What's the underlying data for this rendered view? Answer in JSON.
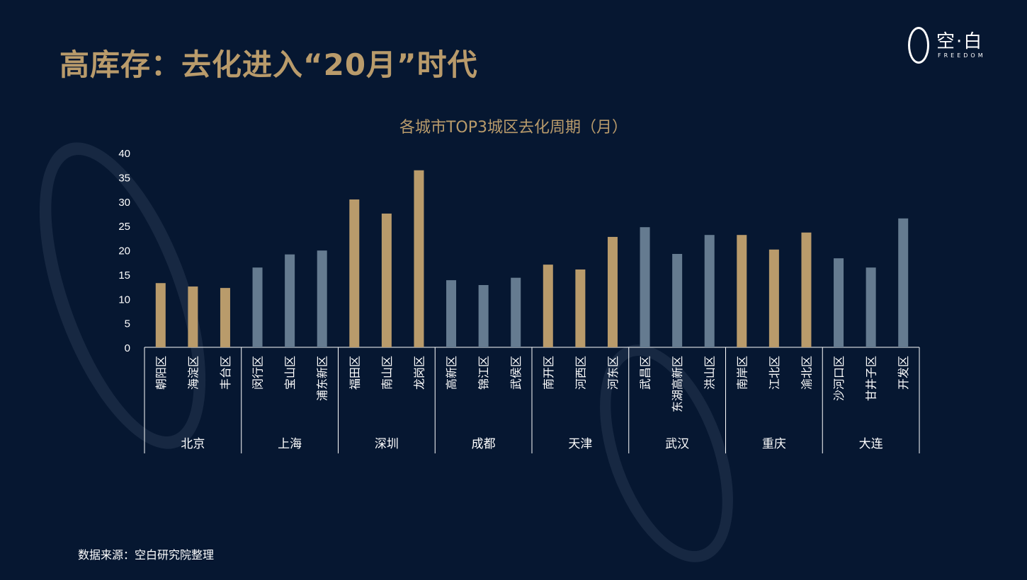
{
  "title": "高库存：去化进入“20月”时代",
  "logo": {
    "text": "空·白",
    "sub": "FREEDOM"
  },
  "source": "数据来源：空白研究院整理",
  "colors": {
    "background": "#061731",
    "gold": "#b99b6b",
    "slate": "#657b90",
    "axis": "#ffffff"
  },
  "chart_data": {
    "type": "bar",
    "title": "各城市TOP3城区去化周期（月）",
    "ylim": [
      0,
      40
    ],
    "yticks": [
      0,
      5,
      10,
      15,
      20,
      25,
      30,
      35,
      40
    ],
    "grid": false,
    "groups": [
      {
        "city": "北京",
        "color": "gold",
        "districts": [
          "朝阳区",
          "海淀区",
          "丰台区"
        ],
        "values": [
          13.2,
          12.5,
          12.2
        ]
      },
      {
        "city": "上海",
        "color": "slate",
        "districts": [
          "闵行区",
          "宝山区",
          "浦东新区"
        ],
        "values": [
          16.4,
          19.1,
          19.9
        ]
      },
      {
        "city": "深圳",
        "color": "gold",
        "districts": [
          "福田区",
          "南山区",
          "龙岗区"
        ],
        "values": [
          30.4,
          27.5,
          36.4
        ]
      },
      {
        "city": "成都",
        "color": "slate",
        "districts": [
          "高新区",
          "锦江区",
          "武侯区"
        ],
        "values": [
          13.8,
          12.8,
          14.3
        ]
      },
      {
        "city": "天津",
        "color": "gold",
        "districts": [
          "南开区",
          "河西区",
          "河东区"
        ],
        "values": [
          17.0,
          16.0,
          22.7
        ]
      },
      {
        "city": "武汉",
        "color": "slate",
        "districts": [
          "武昌区",
          "东湖高新区",
          "洪山区"
        ],
        "values": [
          24.7,
          19.2,
          23.1
        ]
      },
      {
        "city": "重庆",
        "color": "gold",
        "districts": [
          "南岸区",
          "江北区",
          "渝北区"
        ],
        "values": [
          23.1,
          20.1,
          23.6
        ]
      },
      {
        "city": "大连",
        "color": "slate",
        "districts": [
          "沙河口区",
          "甘井子区",
          "开发区"
        ],
        "values": [
          18.3,
          16.4,
          26.5
        ]
      }
    ]
  }
}
